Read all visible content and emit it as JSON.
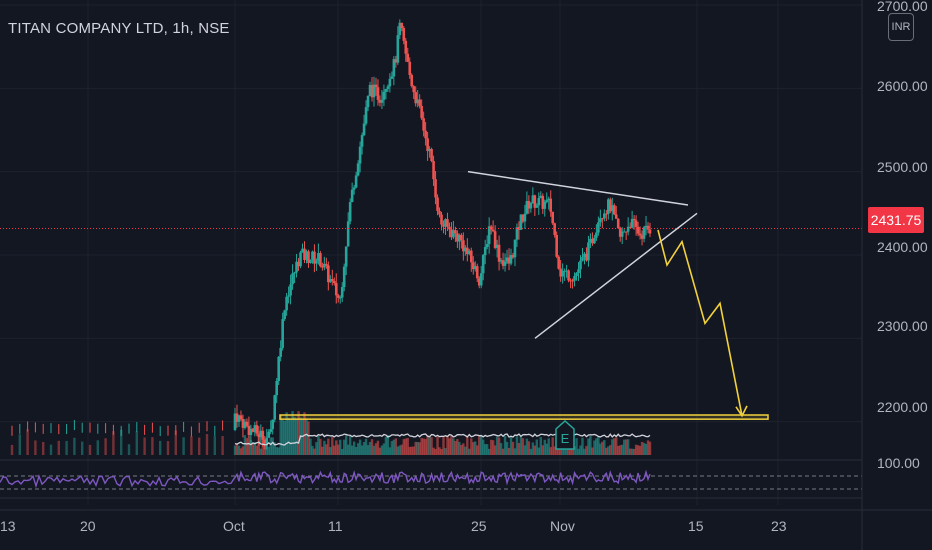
{
  "header": {
    "symbol_title": "TITAN COMPANY LTD, 1h, NSE",
    "currency": "INR"
  },
  "price_tag": "2431.75",
  "colors": {
    "background": "#131722",
    "up": "#26a69a",
    "down": "#ef5350",
    "volume_ma": "#d1d4dc",
    "rsi": "#7e57c2",
    "pattern": "#d1d4dc",
    "projection": "#f2d13c",
    "price_line": "#f23645"
  },
  "chart_data": {
    "type": "candlestick",
    "title": "TITAN COMPANY LTD, 1h, NSE",
    "ylim": [
      2160,
      2700
    ],
    "y_ticks": [
      "2700.00",
      "2600.00",
      "2500.00",
      "2400.00",
      "2300.00",
      "2200.00"
    ],
    "x_ticks": [
      "13",
      "20",
      "Oct",
      "11",
      "25",
      "Nov",
      "15",
      "23"
    ],
    "rsi_tick": "100.00",
    "last_price": 2431.75,
    "price_path": [
      [
        0.0,
        2190
      ],
      [
        0.04,
        2196
      ],
      [
        0.08,
        2185
      ],
      [
        0.12,
        2192
      ],
      [
        0.16,
        2188
      ],
      [
        0.19,
        2205
      ],
      [
        0.22,
        2230
      ],
      [
        0.25,
        2190
      ],
      [
        0.27,
        2180
      ],
      [
        0.285,
        2345
      ],
      [
        0.3,
        2400
      ],
      [
        0.32,
        2395
      ],
      [
        0.34,
        2345
      ],
      [
        0.35,
        2460
      ],
      [
        0.36,
        2530
      ],
      [
        0.37,
        2600
      ],
      [
        0.38,
        2590
      ],
      [
        0.395,
        2630
      ],
      [
        0.4,
        2675
      ],
      [
        0.41,
        2615
      ],
      [
        0.42,
        2570
      ],
      [
        0.43,
        2520
      ],
      [
        0.44,
        2440
      ],
      [
        0.46,
        2420
      ],
      [
        0.48,
        2370
      ],
      [
        0.49,
        2440
      ],
      [
        0.5,
        2395
      ],
      [
        0.51,
        2390
      ],
      [
        0.52,
        2440
      ],
      [
        0.53,
        2465
      ],
      [
        0.55,
        2460
      ],
      [
        0.56,
        2380
      ],
      [
        0.575,
        2375
      ],
      [
        0.59,
        2410
      ],
      [
        0.6,
        2450
      ],
      [
        0.61,
        2460
      ],
      [
        0.62,
        2420
      ],
      [
        0.63,
        2440
      ],
      [
        0.64,
        2425
      ],
      [
        0.65,
        2432
      ]
    ],
    "volume_scale": [
      0,
      1
    ],
    "rsi_scale": [
      20,
      80
    ],
    "annotations": [
      {
        "kind": "triangle-upper",
        "from": [
          0.468,
          2500
        ],
        "to": [
          0.688,
          2460
        ]
      },
      {
        "kind": "triangle-lower",
        "from": [
          0.535,
          2300
        ],
        "to": [
          0.697,
          2450
        ]
      },
      {
        "kind": "support-zone",
        "range": [
          2203,
          2208
        ],
        "from": 0.28,
        "to": 0.768
      },
      {
        "kind": "projection-path",
        "points": [
          [
            0.658,
            2430
          ],
          [
            0.667,
            2388
          ],
          [
            0.682,
            2416
          ],
          [
            0.705,
            2318
          ],
          [
            0.72,
            2342
          ],
          [
            0.742,
            2207
          ]
        ]
      },
      {
        "kind": "earnings-marker",
        "label": "E",
        "x": 0.565
      }
    ]
  }
}
